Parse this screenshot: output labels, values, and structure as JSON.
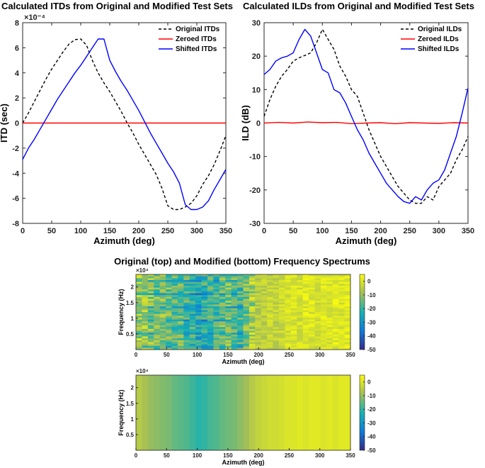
{
  "figure": {
    "heat_title": "Original (top) and Modified (bottom) Frequency Spectrums"
  },
  "chart_data": [
    {
      "type": "line",
      "title": "Calculated ITDs from Original and Modified Test Sets",
      "xlabel": "Azimuth (deg)",
      "ylabel": "ITD (sec)",
      "y_exponent": "×10⁻⁴",
      "xlim": [
        0,
        350
      ],
      "ylim": [
        -8,
        8
      ],
      "xticks": [
        0,
        50,
        100,
        150,
        200,
        250,
        300,
        350
      ],
      "yticks": [
        -8,
        -6,
        -4,
        -2,
        0,
        2,
        4,
        6,
        8
      ],
      "legend_position": "top-right",
      "series": [
        {
          "name": "Original ITDs",
          "color": "#000000",
          "style": "dashed",
          "x": [
            0,
            10,
            20,
            30,
            40,
            50,
            60,
            70,
            80,
            90,
            100,
            110,
            120,
            130,
            140,
            150,
            160,
            170,
            180,
            190,
            200,
            210,
            220,
            230,
            240,
            250,
            260,
            270,
            280,
            290,
            300,
            310,
            320,
            330,
            340,
            350
          ],
          "y": [
            0,
            0.8,
            1.7,
            2.6,
            3.5,
            4.3,
            5.0,
            5.7,
            6.3,
            6.65,
            6.7,
            6.2,
            5.0,
            4.0,
            3.2,
            2.5,
            1.7,
            0.9,
            0,
            -0.8,
            -1.7,
            -2.5,
            -3.3,
            -4.1,
            -5.2,
            -6.6,
            -6.9,
            -6.9,
            -6.7,
            -6.4,
            -5.8,
            -4.9,
            -4.2,
            -3.3,
            -2.2,
            -1.0
          ]
        },
        {
          "name": "Zeroed ITDs",
          "color": "#ff0000",
          "style": "solid",
          "x": [
            0,
            350
          ],
          "y": [
            0,
            0
          ]
        },
        {
          "name": "Shifted ITDs",
          "color": "#0000ff",
          "style": "solid",
          "x": [
            0,
            10,
            20,
            30,
            40,
            50,
            60,
            70,
            80,
            90,
            100,
            110,
            120,
            130,
            140,
            150,
            160,
            170,
            180,
            190,
            200,
            210,
            220,
            230,
            240,
            250,
            260,
            270,
            280,
            290,
            300,
            310,
            320,
            330,
            340,
            350
          ],
          "y": [
            -2.9,
            -2.0,
            -1.3,
            -0.5,
            0.3,
            1.1,
            1.9,
            2.6,
            3.3,
            4.0,
            4.6,
            5.3,
            6.0,
            6.7,
            6.7,
            5.0,
            4.1,
            3.3,
            2.6,
            1.8,
            1.0,
            0.1,
            -0.8,
            -1.6,
            -2.4,
            -3.2,
            -3.9,
            -4.8,
            -6.5,
            -6.9,
            -6.9,
            -6.7,
            -6.2,
            -5.3,
            -4.5,
            -3.7
          ]
        }
      ]
    },
    {
      "type": "line",
      "title": "Calculated ILDs from Original and Modified Test Sets",
      "xlabel": "Azimuth (deg)",
      "ylabel": "ILD (dB)",
      "xlim": [
        0,
        350
      ],
      "ylim": [
        -30,
        30
      ],
      "xticks": [
        0,
        50,
        100,
        150,
        200,
        250,
        300,
        350
      ],
      "yticks": [
        -30,
        -20,
        -10,
        0,
        10,
        20,
        30
      ],
      "legend_position": "top-right",
      "series": [
        {
          "name": "Original ILDs",
          "color": "#000000",
          "style": "dashed",
          "x": [
            0,
            10,
            20,
            30,
            40,
            50,
            60,
            70,
            80,
            90,
            100,
            110,
            120,
            130,
            140,
            150,
            160,
            170,
            180,
            190,
            200,
            210,
            220,
            230,
            240,
            250,
            260,
            270,
            280,
            290,
            300,
            310,
            320,
            330,
            340,
            350
          ],
          "y": [
            2,
            7,
            11,
            14,
            16,
            18.5,
            19.5,
            20.2,
            21,
            24,
            28,
            25,
            22,
            17,
            14,
            10,
            8,
            3,
            -2,
            -6,
            -10,
            -13,
            -16,
            -19,
            -21,
            -23,
            -24,
            -24,
            -22,
            -23,
            -19,
            -17,
            -15,
            -11,
            -8,
            -4
          ]
        },
        {
          "name": "Zeroed ILDs",
          "color": "#ff0000",
          "style": "solid",
          "x": [
            0,
            25,
            50,
            75,
            100,
            125,
            150,
            175,
            200,
            225,
            250,
            275,
            300,
            325,
            350
          ],
          "y": [
            0,
            0.2,
            0,
            0.3,
            0.1,
            0.2,
            -0.2,
            0,
            0.1,
            -0.2,
            0.1,
            0,
            -0.1,
            0.1,
            0
          ]
        },
        {
          "name": "Shifted ILDs",
          "color": "#0000ff",
          "style": "solid",
          "x": [
            0,
            10,
            20,
            30,
            40,
            50,
            60,
            70,
            80,
            90,
            100,
            110,
            120,
            130,
            140,
            150,
            160,
            170,
            180,
            190,
            200,
            210,
            220,
            230,
            240,
            250,
            260,
            270,
            280,
            290,
            300,
            310,
            320,
            330,
            340,
            350
          ],
          "y": [
            14.5,
            16,
            18.5,
            19.5,
            20,
            21,
            25,
            28,
            26,
            21,
            16,
            15,
            10,
            9,
            6,
            2,
            -2,
            -5,
            -9,
            -12,
            -15,
            -18,
            -20,
            -22,
            -23.5,
            -24,
            -22,
            -23,
            -20,
            -18,
            -17,
            -14,
            -9,
            -4,
            3,
            10.5
          ]
        }
      ]
    },
    {
      "type": "heatmap",
      "title": "Original (top) and Modified (bottom) Frequency Spectrums",
      "xlabel": "Azimuth (deg)",
      "ylabel": "Frequency (Hz)",
      "y_exponent": "×10⁴",
      "xlim": [
        0,
        350
      ],
      "ylim": [
        0,
        2.4
      ],
      "xticks": [
        0,
        50,
        100,
        150,
        200,
        250,
        300,
        350
      ],
      "yticks": [
        0.5,
        1,
        1.5,
        2
      ],
      "colorbar_ticks": [
        0,
        -10,
        -20,
        -30,
        -40,
        -50
      ],
      "clim": [
        -50,
        5
      ],
      "column_levels_db": [
        -8,
        -9,
        -11,
        -13,
        -12,
        -14,
        -16,
        -15,
        -18,
        -20,
        -24,
        -22,
        -19,
        -17,
        -14,
        -12,
        -16,
        -19,
        -13,
        -7,
        -6,
        -5,
        -3,
        -4,
        -2,
        -1,
        0,
        -1,
        1,
        0,
        -1,
        1,
        0,
        1,
        0,
        1
      ]
    },
    {
      "type": "heatmap",
      "xlabel": "Azimuth (deg)",
      "ylabel": "Frequency (Hz)",
      "y_exponent": "×10⁴",
      "xlim": [
        0,
        350
      ],
      "ylim": [
        0,
        2.4
      ],
      "xticks": [
        0,
        50,
        100,
        150,
        200,
        250,
        300,
        350
      ],
      "yticks": [
        0.5,
        1,
        1.5,
        2
      ],
      "colorbar_ticks": [
        0,
        -10,
        -20,
        -30,
        -40,
        -50
      ],
      "clim": [
        -50,
        5
      ],
      "column_levels_db": [
        -6,
        -8,
        -10,
        -11,
        -12,
        -13,
        -15,
        -16,
        -17,
        -19,
        -21,
        -20,
        -18,
        -17,
        -15,
        -14,
        -13,
        -11,
        -9,
        -6,
        -4,
        -3,
        -2,
        -2,
        -1,
        0,
        0,
        1,
        0,
        1,
        1,
        0,
        1,
        0,
        1,
        1
      ]
    }
  ]
}
